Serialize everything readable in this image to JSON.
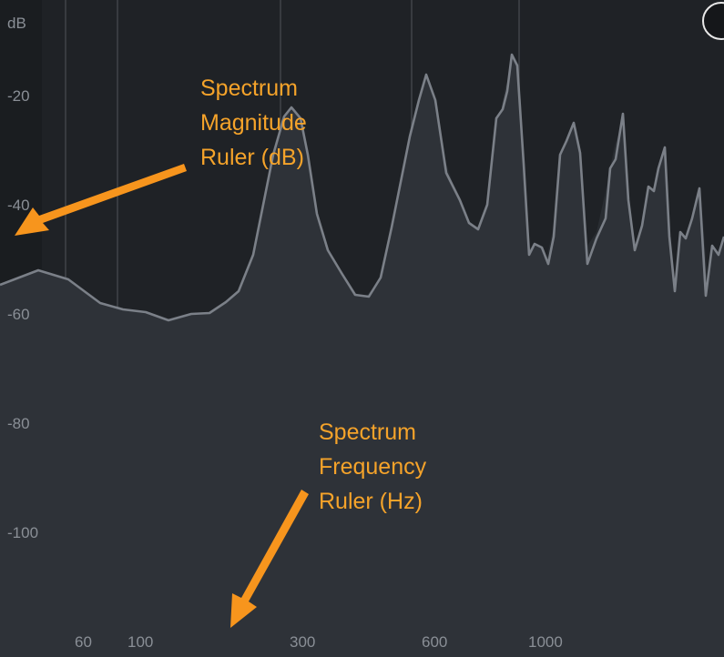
{
  "colors": {
    "background": "#1f2226",
    "left_band": "#1a1d20",
    "vertical_gridline": "#3e4247",
    "spectrum_fill": "#2e3238",
    "hold_fill": "#292d32",
    "spectrum_line": "#7b8088",
    "ruler_text": "#8a8f96",
    "callout_text": "#f5a32a",
    "arrow": "#f7951d"
  },
  "magnitude_ruler": {
    "unit_label": "dB",
    "ticks": [
      "-20",
      "-40",
      "-60",
      "-80",
      "-100"
    ]
  },
  "frequency_ruler": {
    "ticks": [
      "60",
      "100",
      "300",
      "600",
      "1000"
    ]
  },
  "callouts": {
    "magnitude": {
      "lines": [
        "Spectrum",
        "Magnitude",
        "Ruler (dB)"
      ],
      "arrow_color": "#f7951d"
    },
    "frequency": {
      "lines": [
        "Spectrum",
        "Frequency",
        "Ruler (Hz)"
      ],
      "arrow_color": "#f7951d"
    }
  },
  "corner_handle": {
    "icon": "circle-handle-icon"
  }
}
